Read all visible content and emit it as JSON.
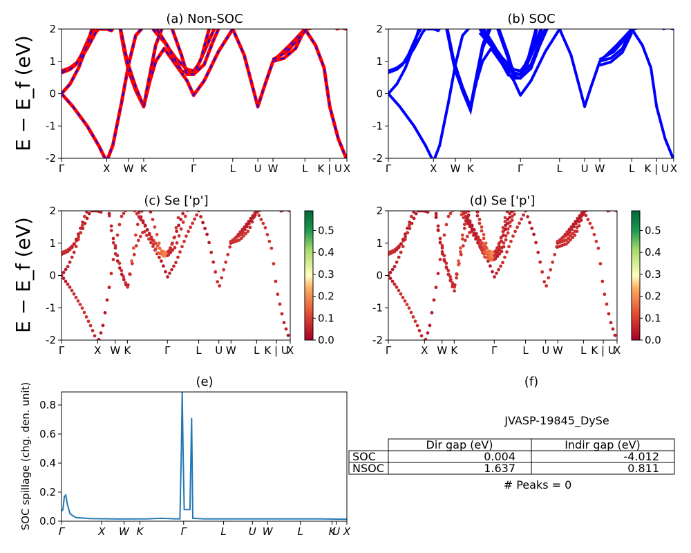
{
  "chart_data": [
    {
      "id": "a",
      "type": "line",
      "title": "(a) Non-SOC",
      "ylabel": "E − E_f (eV)",
      "ylim": [
        -2,
        2
      ],
      "yticks": [
        "-2",
        "-1",
        "0",
        "1",
        "2"
      ],
      "xticks": [
        "Γ",
        "X",
        "W",
        "K",
        "Γ",
        "L",
        "U",
        "W",
        "L",
        "K | U",
        "X"
      ],
      "series_colors": [
        "#ff0000",
        "#0000ff"
      ],
      "bands": [
        {
          "name": "",
          "x": [
            0,
            0.05,
            0.1,
            0.15,
            0.2,
            0.25,
            0.3,
            0.35,
            0.4,
            0.45,
            0.5,
            0.55,
            0.6
          ],
          "y": [
            0,
            -0.5,
            -1.0,
            -1.45,
            -1.8,
            -2.05,
            -2.3,
            -1.2,
            0.2,
            0.9,
            1.6,
            1.9,
            2.0
          ]
        },
        {
          "name": "",
          "x": [
            0,
            0.03,
            0.06,
            0.09,
            0.12,
            0.15
          ],
          "y": [
            0.65,
            1.0,
            1.4,
            1.8,
            2.0,
            2.1
          ]
        },
        {
          "name": "",
          "x": [
            0,
            0.03,
            0.06,
            0.09,
            0.12,
            0.15,
            0.2
          ],
          "y": [
            0,
            0.35,
            0.8,
            1.3,
            1.8,
            2.1,
            2.2
          ]
        }
      ]
    },
    {
      "id": "b",
      "type": "line",
      "title": "(b) SOC",
      "ylim": [
        -2,
        2
      ],
      "yticks": [
        "-2",
        "-1",
        "0",
        "1",
        "2"
      ],
      "xticks": [
        "Γ",
        "X",
        "W",
        "K",
        "Γ",
        "L",
        "U",
        "W",
        "L",
        "K | U",
        "X"
      ],
      "series_colors": [
        "#0000ff"
      ]
    },
    {
      "id": "c",
      "type": "scatter",
      "title": "(c)  Se ['p']",
      "ylabel": "E − E_f (eV)",
      "ylim": [
        -2,
        2
      ],
      "yticks": [
        "-2",
        "-1",
        "0",
        "1",
        "2"
      ],
      "xticks": [
        "Γ",
        "X",
        "W",
        "K",
        "Γ",
        "L",
        "U",
        "W",
        "L",
        "K | U",
        "X"
      ],
      "colorbar": {
        "ticks": [
          "0.0",
          "0.1",
          "0.2",
          "0.3",
          "0.4",
          "0.5"
        ],
        "range": [
          0,
          0.59
        ]
      }
    },
    {
      "id": "d",
      "type": "scatter",
      "title": "(d) Se ['p']",
      "ylim": [
        -2,
        2
      ],
      "yticks": [
        "-2",
        "-1",
        "0",
        "1",
        "2"
      ],
      "xticks": [
        "Γ",
        "X",
        "W",
        "K",
        "Γ",
        "L",
        "U",
        "W",
        "L",
        "K | U",
        "X"
      ],
      "colorbar": {
        "ticks": [
          "0.0",
          "0.1",
          "0.2",
          "0.3",
          "0.4",
          "0.5"
        ],
        "range": [
          0,
          0.59
        ]
      }
    },
    {
      "id": "e",
      "type": "line",
      "title": "(e)",
      "ylabel": "SOC spillage (chg. den. unit)",
      "ylim": [
        0,
        0.89
      ],
      "yticks": [
        "0.0",
        "0.2",
        "0.4",
        "0.6",
        "0.8"
      ],
      "xticks": [
        "Γ",
        "X",
        "W",
        "K",
        "Γ",
        "L",
        "U",
        "W",
        "L",
        "K",
        "U",
        "X"
      ],
      "series_colors": [
        "#1f77b4"
      ],
      "x": [
        0.0,
        0.005,
        0.01,
        0.015,
        0.02,
        0.03,
        0.05,
        0.1,
        0.2,
        0.3,
        0.35,
        0.4,
        0.415,
        0.42,
        0.423,
        0.426,
        0.43,
        0.44,
        0.45,
        0.453,
        0.456,
        0.46,
        0.5,
        0.6,
        0.7,
        0.8,
        0.9,
        1.0
      ],
      "y": [
        0.07,
        0.08,
        0.17,
        0.18,
        0.12,
        0.05,
        0.025,
        0.018,
        0.015,
        0.016,
        0.02,
        0.016,
        0.016,
        0.5,
        0.89,
        0.5,
        0.08,
        0.08,
        0.08,
        0.4,
        0.71,
        0.02,
        0.016,
        0.016,
        0.016,
        0.016,
        0.016,
        0.014
      ]
    }
  ],
  "panel_f": {
    "title": "(f)",
    "material": "JVASP-19845_DySe",
    "headers": [
      "Dir gap (eV)",
      "Indir gap (eV)"
    ],
    "rows": [
      {
        "label": "SOC",
        "dir": "0.004",
        "indir": "-4.012"
      },
      {
        "label": "NSOC",
        "dir": "1.637",
        "indir": "0.811"
      }
    ],
    "peaks": "# Peaks = 0"
  }
}
